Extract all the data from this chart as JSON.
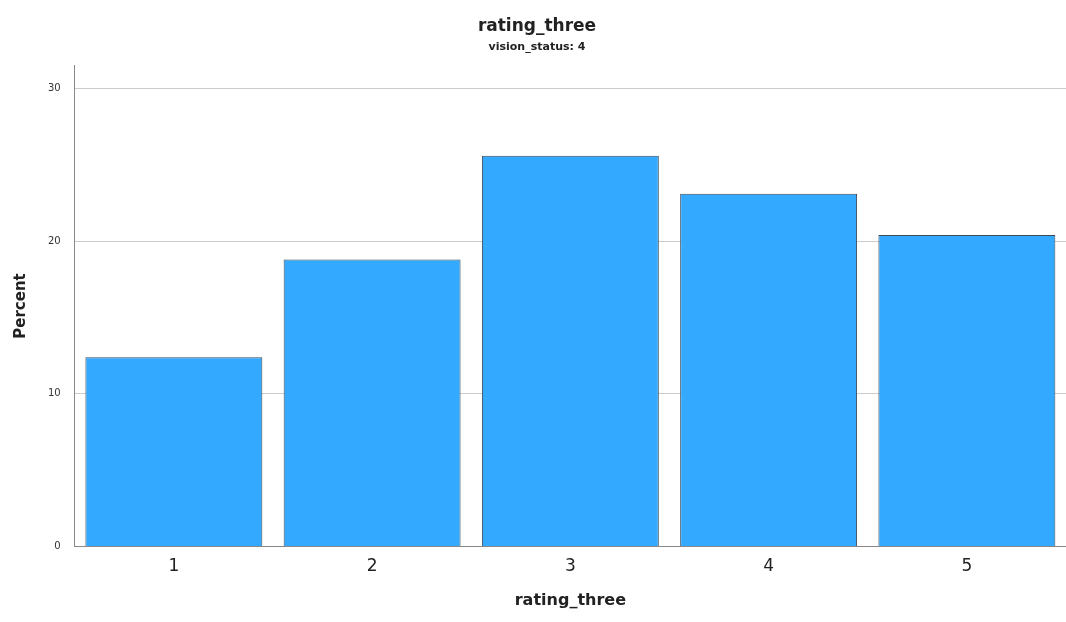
{
  "chart_data": {
    "type": "bar",
    "title": "rating_three",
    "subtitle": "vision_status: 4",
    "xlabel": "rating_three",
    "ylabel": "Percent",
    "categories": [
      "1",
      "2",
      "3",
      "4",
      "5"
    ],
    "values": [
      12.4,
      18.8,
      25.6,
      23.1,
      20.4
    ],
    "color": "#33aaff",
    "ylim": [
      0,
      31.5
    ],
    "yticks": [
      0,
      10,
      20,
      30
    ],
    "grid": "y",
    "legend": false
  }
}
